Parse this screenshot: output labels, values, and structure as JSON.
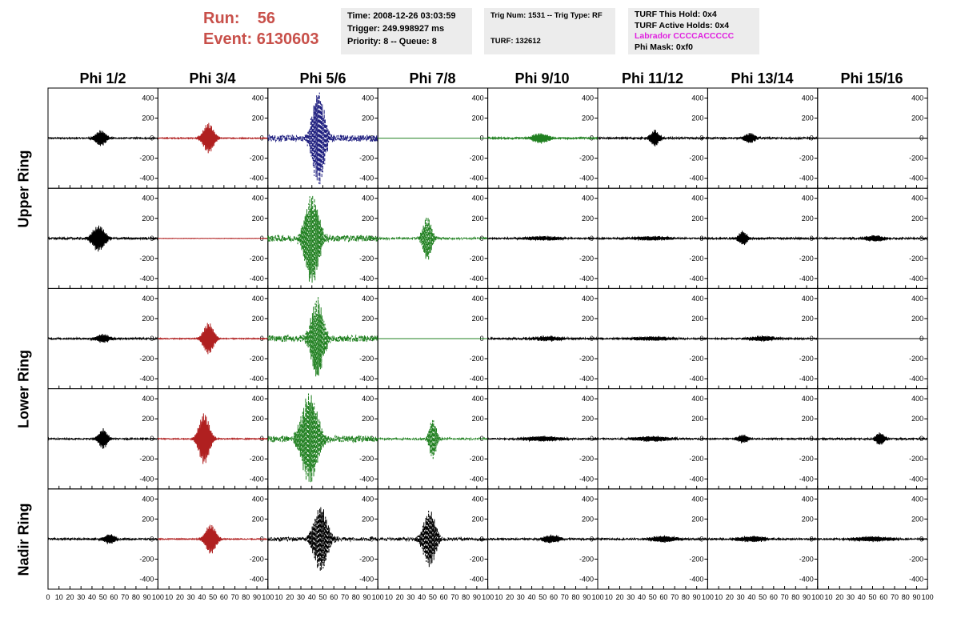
{
  "header": {
    "run_label": "Run:",
    "run_value": "56",
    "event_label": "Event:",
    "event_value": "6130603"
  },
  "info_time": {
    "time": "Time: 2008-12-26 03:03:59",
    "trigger": "Trigger: 249.998927 ms",
    "priority": "Priority: 8 -- Queue: 8"
  },
  "info_trig": {
    "trig_num": "Trig Num: 1531 -- Trig Type: RF",
    "turf": "TURF: 132612"
  },
  "info_turf": {
    "hold": "TURF This Hold: 0x4",
    "active": "TURF Active Holds: 0x4",
    "labrador": "Labrador CCCCACCCCC",
    "phi_mask": "Phi Mask: 0xf0"
  },
  "colors": {
    "labrador": "#e020e0",
    "run": "#c8504a",
    "black": "#000000",
    "red": "#b02020",
    "green": "#208020",
    "blue": "#202080"
  },
  "chart_data": {
    "type": "line",
    "columns": [
      "Phi 1/2",
      "Phi 3/4",
      "Phi 5/6",
      "Phi 7/8",
      "Phi 9/10",
      "Phi 11/12",
      "Phi 13/14",
      "Phi 15/16"
    ],
    "rows": [
      "Upper Ring",
      "Upper Ring",
      "Lower Ring",
      "Lower Ring",
      "Nadir Ring"
    ],
    "row_labels": [
      {
        "text": "Upper Ring",
        "rows": [
          0,
          1
        ]
      },
      {
        "text": "Lower Ring",
        "rows": [
          2,
          3
        ]
      },
      {
        "text": "Nadir Ring",
        "rows": [
          4
        ]
      }
    ],
    "xlim": [
      0,
      100
    ],
    "ylim": [
      -500,
      500
    ],
    "x_ticks": [
      0,
      10,
      20,
      30,
      40,
      50,
      60,
      70,
      80,
      90,
      100
    ],
    "y_ticks": [
      -400,
      -200,
      0,
      200,
      400
    ],
    "panels": [
      [
        {
          "color": "black",
          "style": "solid",
          "amp": 80,
          "center": 48,
          "width": 6,
          "noise": 8
        },
        {
          "color": "red",
          "style": "solid",
          "amp": 150,
          "center": 46,
          "width": 6,
          "noise": 6
        },
        {
          "color": "blue",
          "style": "dashed",
          "amp": 480,
          "center": 46,
          "width": 7,
          "noise": 40
        },
        {
          "color": "green",
          "style": "solid",
          "amp": 0,
          "center": 50,
          "width": 6,
          "noise": 0
        },
        {
          "color": "green",
          "style": "solid",
          "amp": 50,
          "center": 48,
          "width": 9,
          "noise": 10
        },
        {
          "color": "black",
          "style": "solid",
          "amp": 80,
          "center": 52,
          "width": 5,
          "noise": 10
        },
        {
          "color": "black",
          "style": "solid",
          "amp": 50,
          "center": 38,
          "width": 6,
          "noise": 10
        },
        {
          "color": "black",
          "style": "solid",
          "amp": 0,
          "center": 50,
          "width": 6,
          "noise": 0
        }
      ],
      [
        {
          "color": "black",
          "style": "solid",
          "amp": 130,
          "center": 46,
          "width": 7,
          "noise": 12
        },
        {
          "color": "red",
          "style": "solid",
          "amp": 0,
          "center": 50,
          "width": 6,
          "noise": 2
        },
        {
          "color": "green",
          "style": "dashed",
          "amp": 450,
          "center": 40,
          "width": 8,
          "noise": 40
        },
        {
          "color": "green",
          "style": "dashed",
          "amp": 220,
          "center": 45,
          "width": 5,
          "noise": 12
        },
        {
          "color": "black",
          "style": "solid",
          "amp": 20,
          "center": 50,
          "width": 20,
          "noise": 8
        },
        {
          "color": "black",
          "style": "solid",
          "amp": 20,
          "center": 50,
          "width": 20,
          "noise": 8
        },
        {
          "color": "black",
          "style": "solid",
          "amp": 70,
          "center": 32,
          "width": 5,
          "noise": 10
        },
        {
          "color": "black",
          "style": "solid",
          "amp": 30,
          "center": 52,
          "width": 10,
          "noise": 10
        }
      ],
      [
        {
          "color": "black",
          "style": "solid",
          "amp": 40,
          "center": 50,
          "width": 8,
          "noise": 10
        },
        {
          "color": "red",
          "style": "solid",
          "amp": 160,
          "center": 46,
          "width": 6,
          "noise": 6
        },
        {
          "color": "green",
          "style": "dashed",
          "amp": 400,
          "center": 45,
          "width": 7,
          "noise": 40
        },
        {
          "color": "green",
          "style": "solid",
          "amp": 0,
          "center": 50,
          "width": 6,
          "noise": 0
        },
        {
          "color": "black",
          "style": "solid",
          "amp": 25,
          "center": 55,
          "width": 15,
          "noise": 10
        },
        {
          "color": "black",
          "style": "solid",
          "amp": 20,
          "center": 50,
          "width": 20,
          "noise": 8
        },
        {
          "color": "black",
          "style": "solid",
          "amp": 25,
          "center": 50,
          "width": 15,
          "noise": 8
        },
        {
          "color": "black",
          "style": "solid",
          "amp": 0,
          "center": 50,
          "width": 6,
          "noise": 0
        }
      ],
      [
        {
          "color": "black",
          "style": "solid",
          "amp": 100,
          "center": 50,
          "width": 5,
          "noise": 8
        },
        {
          "color": "red",
          "style": "solid",
          "amp": 260,
          "center": 42,
          "width": 6,
          "noise": 6
        },
        {
          "color": "green",
          "style": "dashed",
          "amp": 450,
          "center": 38,
          "width": 9,
          "noise": 40
        },
        {
          "color": "green",
          "style": "dashed",
          "amp": 200,
          "center": 50,
          "width": 4,
          "noise": 12
        },
        {
          "color": "black",
          "style": "solid",
          "amp": 25,
          "center": 50,
          "width": 20,
          "noise": 8
        },
        {
          "color": "black",
          "style": "solid",
          "amp": 25,
          "center": 50,
          "width": 20,
          "noise": 8
        },
        {
          "color": "black",
          "style": "solid",
          "amp": 40,
          "center": 32,
          "width": 6,
          "noise": 8
        },
        {
          "color": "black",
          "style": "solid",
          "amp": 60,
          "center": 57,
          "width": 5,
          "noise": 10
        }
      ],
      [
        {
          "color": "black",
          "style": "solid",
          "amp": 50,
          "center": 56,
          "width": 6,
          "noise": 10
        },
        {
          "color": "red",
          "style": "solid",
          "amp": 150,
          "center": 48,
          "width": 6,
          "noise": 6
        },
        {
          "color": "black",
          "style": "dashed",
          "amp": 330,
          "center": 48,
          "width": 8,
          "noise": 25
        },
        {
          "color": "black",
          "style": "dashed",
          "amp": 280,
          "center": 47,
          "width": 7,
          "noise": 20
        },
        {
          "color": "black",
          "style": "solid",
          "amp": 40,
          "center": 58,
          "width": 10,
          "noise": 10
        },
        {
          "color": "black",
          "style": "solid",
          "amp": 30,
          "center": 60,
          "width": 15,
          "noise": 10
        },
        {
          "color": "black",
          "style": "solid",
          "amp": 30,
          "center": 40,
          "width": 15,
          "noise": 10
        },
        {
          "color": "black",
          "style": "solid",
          "amp": 25,
          "center": 50,
          "width": 20,
          "noise": 8
        }
      ]
    ]
  }
}
